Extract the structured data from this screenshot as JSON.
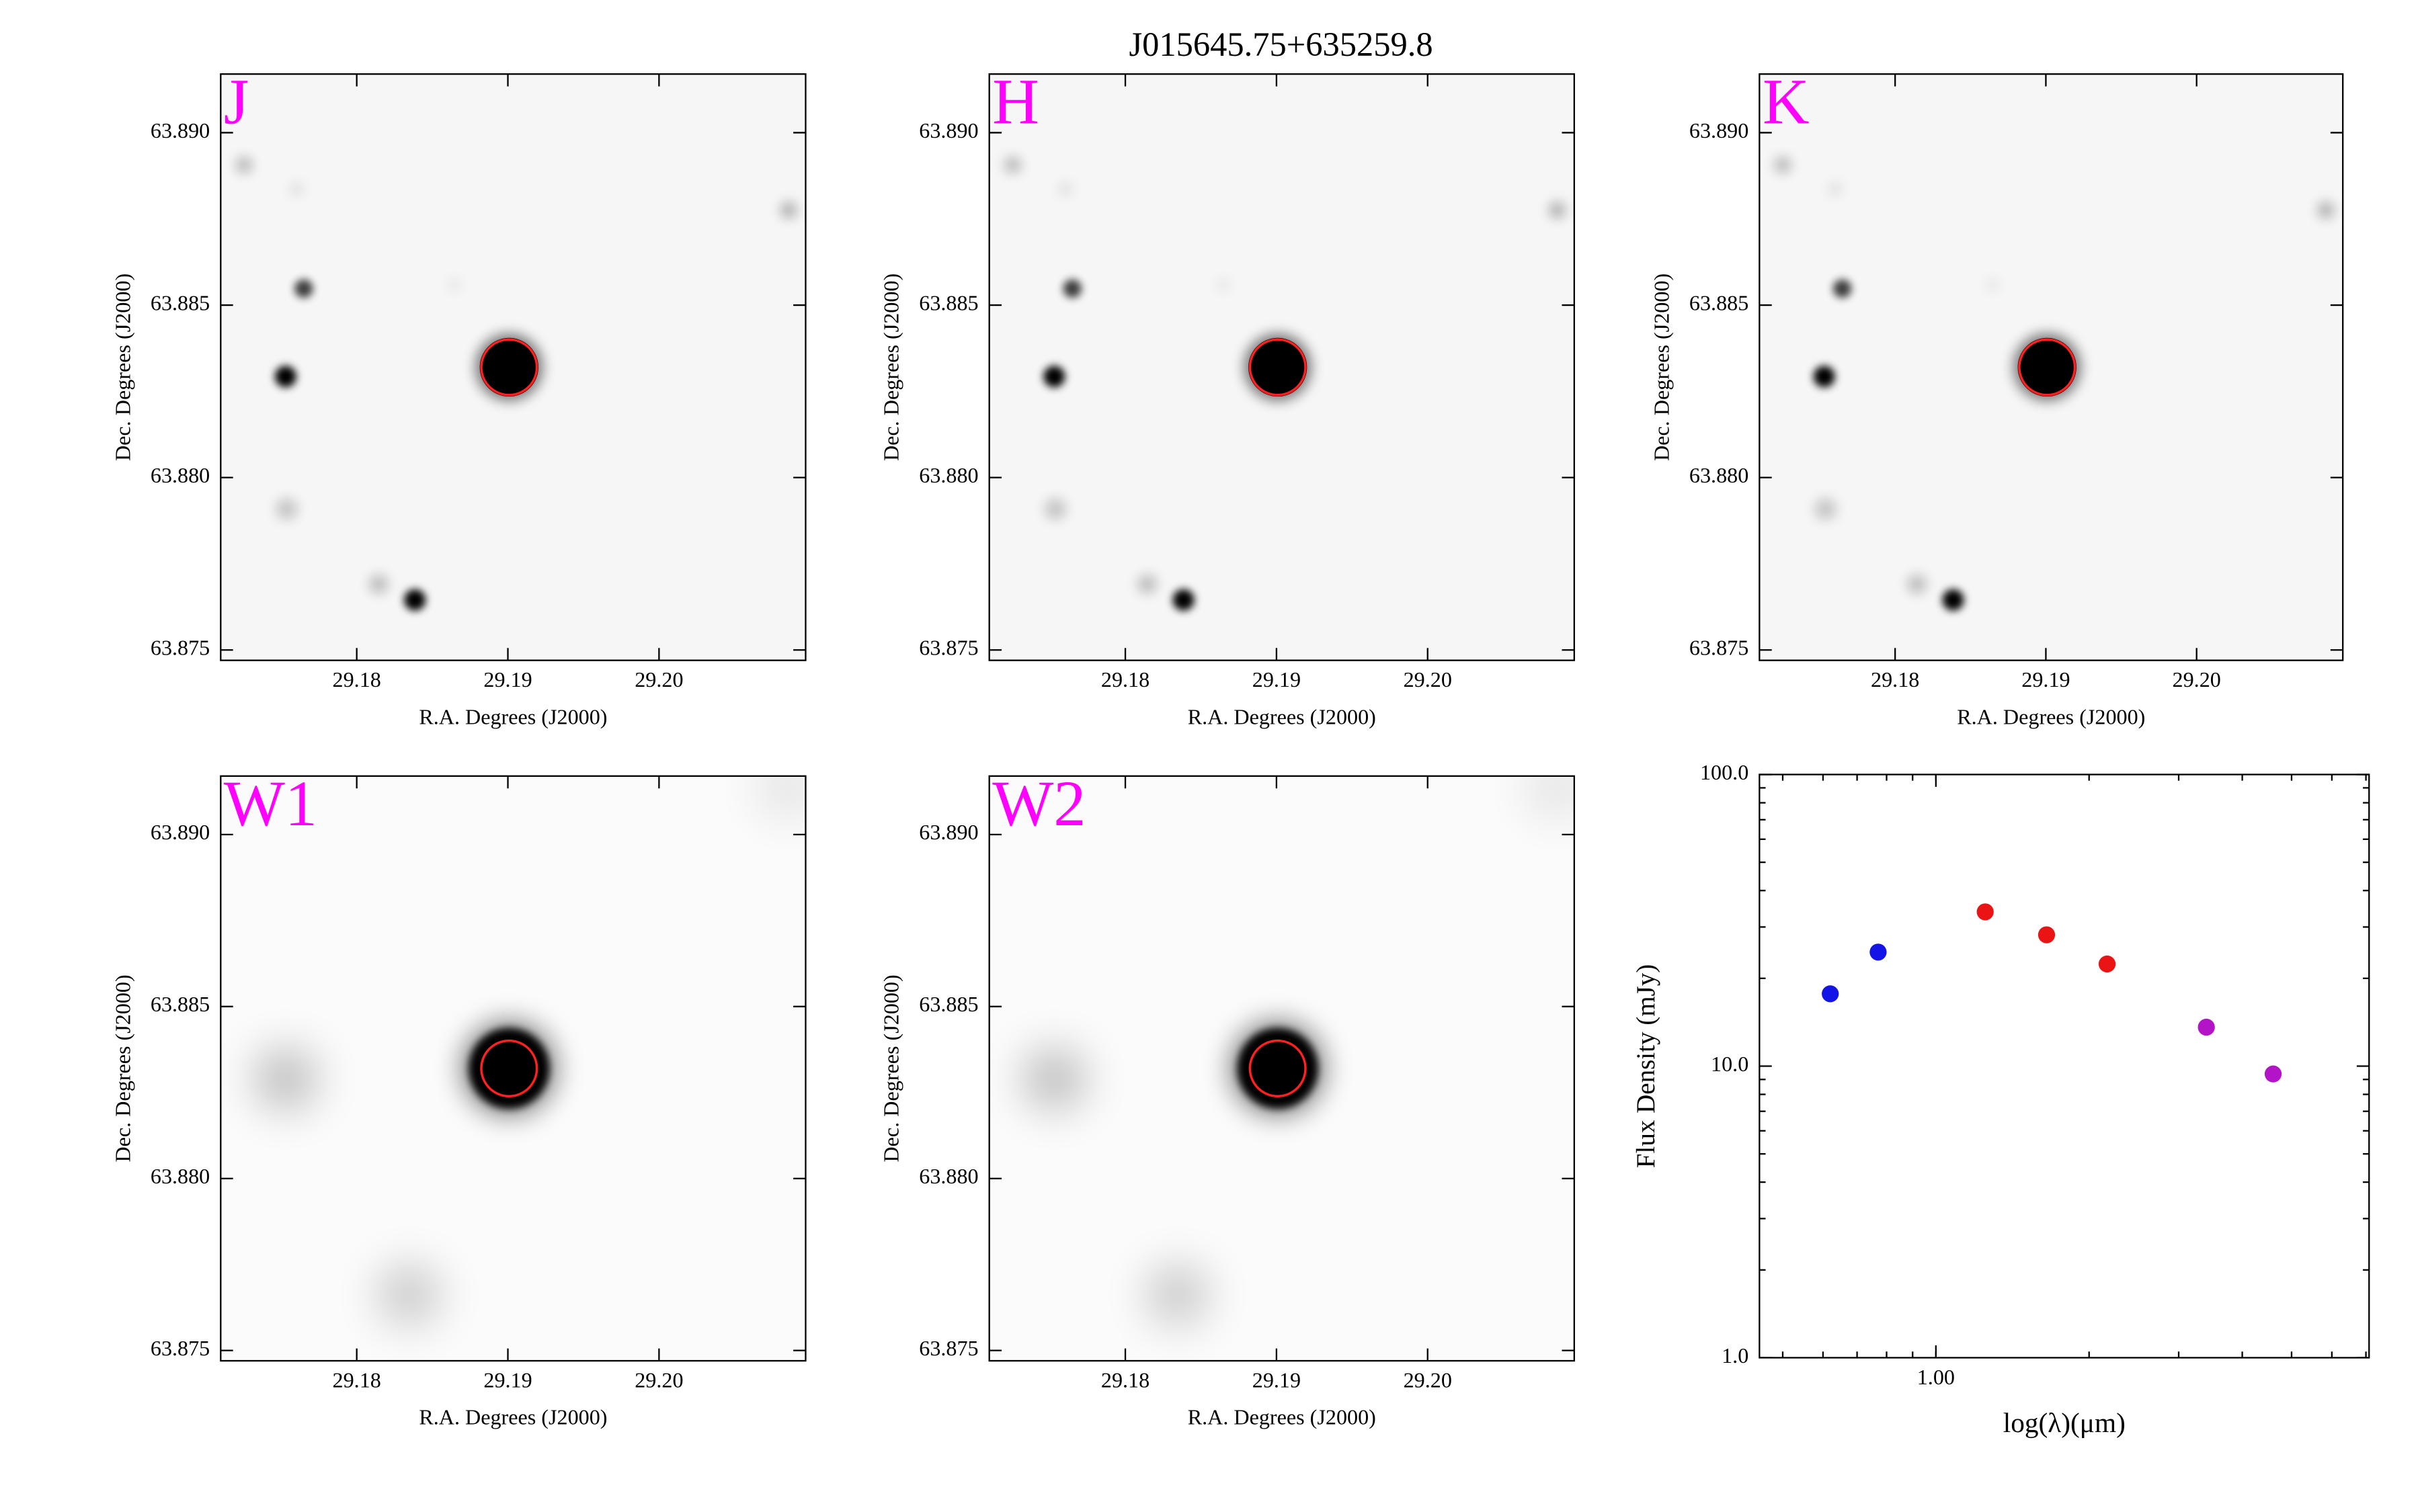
{
  "title": "J015645.75+635259.8",
  "chart_data": [
    {
      "type": "image",
      "title": "J",
      "x_label": "R.A. Degrees (J2000)",
      "y_label": "Dec. Degrees (J2000)",
      "xlim": [
        29.171,
        29.2097
      ],
      "ylim": [
        63.8747,
        63.8917
      ],
      "xticks": [
        29.18,
        29.19,
        {
          "value": 29.2,
          "label": "29.20"
        }
      ],
      "yticks": [
        63.875,
        {
          "value": 63.88,
          "label": "63.880"
        },
        63.885,
        {
          "value": 63.89,
          "label": "63.890"
        }
      ]
    },
    {
      "type": "image",
      "title": "H",
      "x_label": "R.A. Degrees (J2000)",
      "y_label": "Dec. Degrees (J2000)",
      "xlim": [
        29.171,
        29.2097
      ],
      "ylim": [
        63.8747,
        63.8917
      ],
      "xticks": [
        29.18,
        29.19,
        {
          "value": 29.2,
          "label": "29.20"
        }
      ],
      "yticks": [
        63.875,
        {
          "value": 63.88,
          "label": "63.880"
        },
        63.885,
        {
          "value": 63.89,
          "label": "63.890"
        }
      ]
    },
    {
      "type": "image",
      "title": "K",
      "x_label": "R.A. Degrees (J2000)",
      "y_label": "Dec. Degrees (J2000)",
      "xlim": [
        29.171,
        29.2097
      ],
      "ylim": [
        63.8747,
        63.8917
      ],
      "xticks": [
        29.18,
        29.19,
        {
          "value": 29.2,
          "label": "29.20"
        }
      ],
      "yticks": [
        63.875,
        {
          "value": 63.88,
          "label": "63.880"
        },
        63.885,
        {
          "value": 63.89,
          "label": "63.890"
        }
      ]
    },
    {
      "type": "image",
      "title": "W1",
      "x_label": "R.A. Degrees (J2000)",
      "y_label": "Dec. Degrees (J2000)",
      "xlim": [
        29.171,
        29.2097
      ],
      "ylim": [
        63.8747,
        63.8917
      ],
      "xticks": [
        29.18,
        29.19,
        {
          "value": 29.2,
          "label": "29.20"
        }
      ],
      "yticks": [
        63.875,
        {
          "value": 63.88,
          "label": "63.880"
        },
        63.885,
        {
          "value": 63.89,
          "label": "63.890"
        }
      ]
    },
    {
      "type": "image",
      "title": "W2",
      "x_label": "R.A. Degrees (J2000)",
      "y_label": "Dec. Degrees (J2000)",
      "xlim": [
        29.171,
        29.2097
      ],
      "ylim": [
        63.8747,
        63.8917
      ],
      "xticks": [
        29.18,
        29.19,
        {
          "value": 29.2,
          "label": "29.20"
        }
      ],
      "yticks": [
        63.875,
        {
          "value": 63.88,
          "label": "63.880"
        },
        63.885,
        {
          "value": 63.89,
          "label": "63.890"
        }
      ]
    },
    {
      "type": "scatter",
      "x_label": "log(λ)(μm)",
      "y_label": "Flux Density (mJy)",
      "x_log": true,
      "y_log": true,
      "xlim": [
        0.45,
        7.1
      ],
      "ylim": [
        1,
        100
      ],
      "xticks": [
        {
          "value": 1,
          "label": "1.00"
        }
      ],
      "yticks": [
        {
          "value": 1,
          "label": "1.0"
        },
        {
          "value": 10,
          "label": "10.0"
        },
        {
          "value": 100,
          "label": "100.0"
        }
      ],
      "series": [
        {
          "color": "#1414e6",
          "x": [
            0.62,
            0.77
          ],
          "values": [
            17.7,
            24.6
          ]
        },
        {
          "color": "#eb1414",
          "x": [
            1.25,
            1.65,
            2.17
          ],
          "values": [
            33.8,
            28.2,
            22.4
          ]
        },
        {
          "color": "#b414c8",
          "x": [
            3.4,
            4.6
          ],
          "values": [
            13.6,
            9.4
          ]
        }
      ]
    }
  ]
}
